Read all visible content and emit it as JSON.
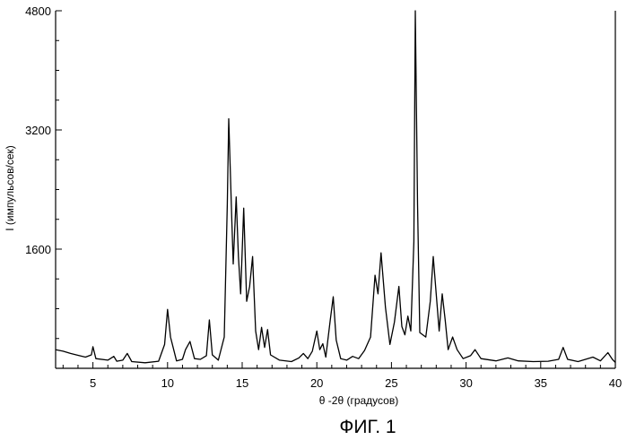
{
  "chart_data": {
    "type": "line",
    "xlabel": "θ -2θ (градусов)",
    "ylabel": "I (импульсов/сек)",
    "caption": "ФИГ. 1",
    "xlim": [
      2.5,
      40
    ],
    "ylim": [
      0,
      4800
    ],
    "xticks": [
      5,
      10,
      15,
      20,
      25,
      30,
      35,
      40
    ],
    "yticks": [
      1600,
      3200,
      4800
    ],
    "grid": false,
    "series": [
      {
        "values": [
          [
            2.5,
            250
          ],
          [
            3.0,
            230
          ],
          [
            3.5,
            200
          ],
          [
            4.0,
            175
          ],
          [
            4.5,
            150
          ],
          [
            4.9,
            180
          ],
          [
            5.0,
            290
          ],
          [
            5.2,
            130
          ],
          [
            6.0,
            110
          ],
          [
            6.4,
            160
          ],
          [
            6.6,
            95
          ],
          [
            7.0,
            110
          ],
          [
            7.3,
            200
          ],
          [
            7.6,
            90
          ],
          [
            8.5,
            75
          ],
          [
            9.4,
            95
          ],
          [
            9.8,
            320
          ],
          [
            10.0,
            790
          ],
          [
            10.2,
            420
          ],
          [
            10.6,
            100
          ],
          [
            11.0,
            120
          ],
          [
            11.2,
            250
          ],
          [
            11.5,
            360
          ],
          [
            11.8,
            130
          ],
          [
            12.2,
            120
          ],
          [
            12.6,
            170
          ],
          [
            12.8,
            650
          ],
          [
            13.0,
            180
          ],
          [
            13.4,
            110
          ],
          [
            13.8,
            420
          ],
          [
            14.0,
            2200
          ],
          [
            14.1,
            3350
          ],
          [
            14.3,
            2000
          ],
          [
            14.4,
            1400
          ],
          [
            14.6,
            2300
          ],
          [
            14.75,
            1500
          ],
          [
            14.9,
            1000
          ],
          [
            15.1,
            2150
          ],
          [
            15.3,
            900
          ],
          [
            15.5,
            1100
          ],
          [
            15.7,
            1500
          ],
          [
            15.9,
            500
          ],
          [
            16.1,
            250
          ],
          [
            16.3,
            550
          ],
          [
            16.5,
            280
          ],
          [
            16.7,
            520
          ],
          [
            16.9,
            180
          ],
          [
            17.5,
            110
          ],
          [
            18.3,
            90
          ],
          [
            18.8,
            140
          ],
          [
            19.1,
            200
          ],
          [
            19.4,
            130
          ],
          [
            19.7,
            230
          ],
          [
            20.0,
            500
          ],
          [
            20.2,
            250
          ],
          [
            20.4,
            330
          ],
          [
            20.6,
            150
          ],
          [
            20.9,
            650
          ],
          [
            21.1,
            960
          ],
          [
            21.3,
            380
          ],
          [
            21.6,
            130
          ],
          [
            22.0,
            110
          ],
          [
            22.4,
            160
          ],
          [
            22.8,
            130
          ],
          [
            23.2,
            240
          ],
          [
            23.6,
            420
          ],
          [
            23.9,
            1250
          ],
          [
            24.1,
            1000
          ],
          [
            24.3,
            1550
          ],
          [
            24.6,
            820
          ],
          [
            24.9,
            320
          ],
          [
            25.2,
            620
          ],
          [
            25.5,
            1100
          ],
          [
            25.7,
            560
          ],
          [
            25.9,
            450
          ],
          [
            26.1,
            700
          ],
          [
            26.3,
            500
          ],
          [
            26.5,
            1700
          ],
          [
            26.6,
            4800
          ],
          [
            26.75,
            2200
          ],
          [
            26.9,
            480
          ],
          [
            27.3,
            420
          ],
          [
            27.6,
            900
          ],
          [
            27.8,
            1500
          ],
          [
            28.0,
            1000
          ],
          [
            28.2,
            500
          ],
          [
            28.4,
            1000
          ],
          [
            28.6,
            650
          ],
          [
            28.8,
            250
          ],
          [
            29.1,
            420
          ],
          [
            29.4,
            250
          ],
          [
            29.8,
            130
          ],
          [
            30.3,
            170
          ],
          [
            30.6,
            250
          ],
          [
            31.0,
            130
          ],
          [
            32.0,
            100
          ],
          [
            32.8,
            140
          ],
          [
            33.5,
            100
          ],
          [
            34.5,
            90
          ],
          [
            35.5,
            95
          ],
          [
            36.2,
            120
          ],
          [
            36.5,
            280
          ],
          [
            36.8,
            120
          ],
          [
            37.5,
            90
          ],
          [
            38.5,
            150
          ],
          [
            39.0,
            100
          ],
          [
            39.5,
            210
          ],
          [
            39.8,
            120
          ],
          [
            40.0,
            80
          ]
        ]
      }
    ]
  }
}
